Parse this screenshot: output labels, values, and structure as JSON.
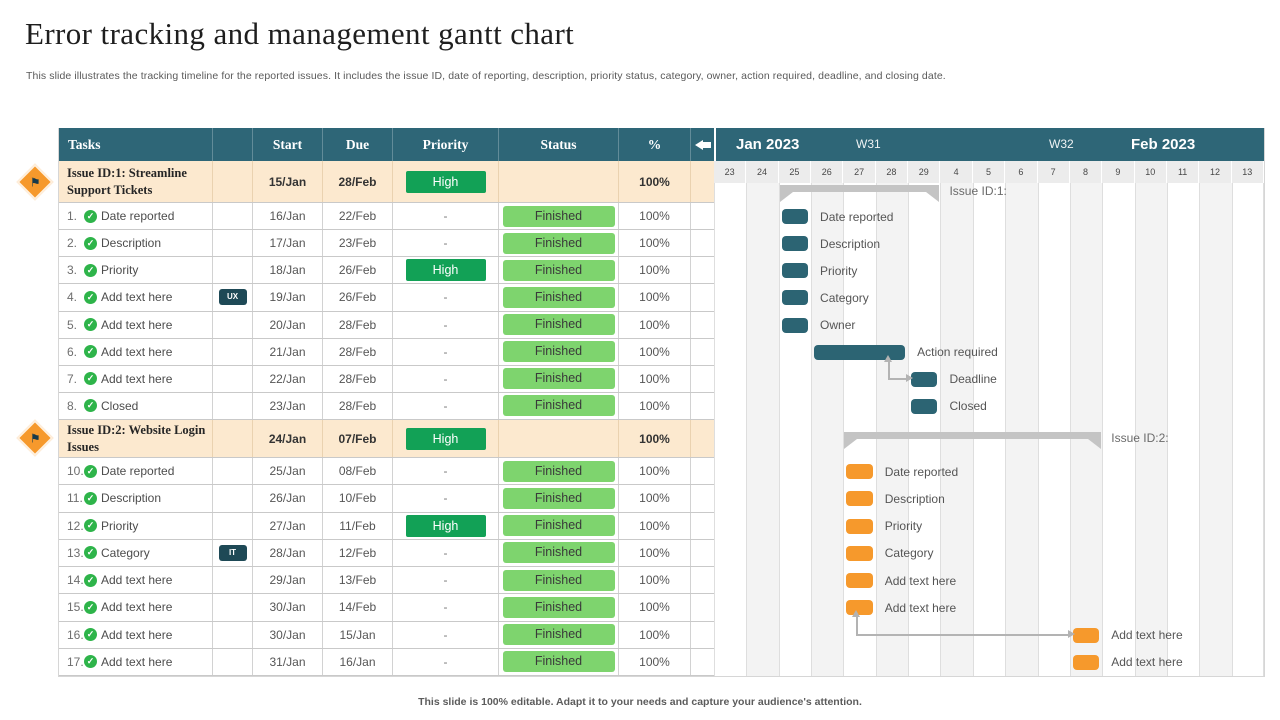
{
  "title": "Error tracking and management gantt chart",
  "subtitle": "This slide illustrates the tracking timeline for the reported issues. It includes the issue ID, date of reporting, description, priority status, category,  owner, action required, deadline, and closing date.",
  "footer": "This slide is 100% editable. Adapt it to your needs and capture your audience's attention.",
  "colors": {
    "header_teal": "#2e6677",
    "teal": "#2c6473",
    "orange": "#f6992c",
    "group_bg": "#fce9cf",
    "high_green": "#12a156",
    "finished_green": "#7ed46e",
    "summary_gray": "#c4c4c4",
    "arrow_gray": "#b3b3b3",
    "tag_bg": "#1e4956",
    "check_green": "#2eb44a"
  },
  "table": {
    "headers": [
      "Tasks",
      "",
      "Start",
      "Due",
      "Priority",
      "Status",
      "%"
    ],
    "back_arrow_icon": "back-arrow",
    "check_glyph": "✓",
    "flag_glyph": "⚑",
    "rows": [
      {
        "type": "group",
        "name": "Issue ID:1:  Streamline Support  Tickets",
        "tag": "",
        "start": "15/Jan",
        "due": "28/Feb",
        "priority": "High",
        "status": "",
        "percent": "100%"
      },
      {
        "type": "task",
        "num": "1.",
        "name": "Date reported",
        "tag": "",
        "start": "16/Jan",
        "due": "22/Feb",
        "priority": "-",
        "status": "Finished",
        "percent": "100%"
      },
      {
        "type": "task",
        "num": "2.",
        "name": "Description",
        "tag": "",
        "start": "17/Jan",
        "due": "23/Feb",
        "priority": "-",
        "status": "Finished",
        "percent": "100%"
      },
      {
        "type": "task",
        "num": "3.",
        "name": "Priority",
        "tag": "",
        "start": "18/Jan",
        "due": "26/Feb",
        "priority": "High",
        "status": "Finished",
        "percent": "100%"
      },
      {
        "type": "task",
        "num": "4.",
        "name": "Add text here",
        "tag": "UX",
        "start": "19/Jan",
        "due": "26/Feb",
        "priority": "-",
        "status": "Finished",
        "percent": "100%"
      },
      {
        "type": "task",
        "num": "5.",
        "name": "Add text here",
        "tag": "",
        "start": "20/Jan",
        "due": "28/Feb",
        "priority": "-",
        "status": "Finished",
        "percent": "100%"
      },
      {
        "type": "task",
        "num": "6.",
        "name": "Add text here",
        "tag": "",
        "start": "21/Jan",
        "due": "28/Feb",
        "priority": "-",
        "status": "Finished",
        "percent": "100%"
      },
      {
        "type": "task",
        "num": "7.",
        "name": "Add text here",
        "tag": "",
        "start": "22/Jan",
        "due": "28/Feb",
        "priority": "-",
        "status": "Finished",
        "percent": "100%"
      },
      {
        "type": "task",
        "num": "8.",
        "name": "Closed",
        "tag": "",
        "start": "23/Jan",
        "due": "28/Feb",
        "priority": "-",
        "status": "Finished",
        "percent": "100%"
      },
      {
        "type": "group",
        "name": "Issue ID:2:  Website Login Issues",
        "tag": "",
        "start": "24/Jan",
        "due": "07/Feb",
        "priority": "High",
        "status": "",
        "percent": "100%"
      },
      {
        "type": "task",
        "num": "10.",
        "name": "Date reported",
        "tag": "",
        "start": "25/Jan",
        "due": "08/Feb",
        "priority": "-",
        "status": "Finished",
        "percent": "100%"
      },
      {
        "type": "task",
        "num": "11.",
        "name": "Description",
        "tag": "",
        "start": "26/Jan",
        "due": "10/Feb",
        "priority": "-",
        "status": "Finished",
        "percent": "100%"
      },
      {
        "type": "task",
        "num": "12.",
        "name": "Priority",
        "tag": "",
        "start": "27/Jan",
        "due": "11/Feb",
        "priority": "High",
        "status": "Finished",
        "percent": "100%"
      },
      {
        "type": "task",
        "num": "13.",
        "name": "Category",
        "tag": "IT",
        "start": "28/Jan",
        "due": "12/Feb",
        "priority": "-",
        "status": "Finished",
        "percent": "100%"
      },
      {
        "type": "task",
        "num": "14.",
        "name": "Add text here",
        "tag": "",
        "start": "29/Jan",
        "due": "13/Feb",
        "priority": "-",
        "status": "Finished",
        "percent": "100%"
      },
      {
        "type": "task",
        "num": "15.",
        "name": "Add text here",
        "tag": "",
        "start": "30/Jan",
        "due": "14/Feb",
        "priority": "-",
        "status": "Finished",
        "percent": "100%"
      },
      {
        "type": "task",
        "num": "16.",
        "name": "Add text here",
        "tag": "",
        "start": "30/Jan",
        "due": "15/Jan",
        "priority": "-",
        "status": "Finished",
        "percent": "100%"
      },
      {
        "type": "task",
        "num": "17.",
        "name": "Add text here",
        "tag": "",
        "start": "31/Jan",
        "due": "16/Jan",
        "priority": "-",
        "status": "Finished",
        "percent": "100%"
      }
    ]
  },
  "chart_data": {
    "type": "bar",
    "subtype": "gantt",
    "title": "Error tracking and management gantt chart",
    "months": [
      "Jan 2023",
      "Feb 2023"
    ],
    "weeks": [
      "W31",
      "W32"
    ],
    "days": [
      "23",
      "24",
      "25",
      "26",
      "27",
      "28",
      "29",
      "4",
      "5",
      "6",
      "7",
      "8",
      "9",
      "10",
      "11",
      "12",
      "13"
    ],
    "summaries": [
      {
        "label": "Issue ID:1:",
        "from_day": "25",
        "to_day": "29"
      },
      {
        "label": "Issue ID:2:",
        "from_day": "27",
        "to_day": "8"
      }
    ],
    "bars": [
      {
        "row": 1,
        "day": "25",
        "span": 1,
        "color": "teal",
        "label": "Date reported"
      },
      {
        "row": 2,
        "day": "25",
        "span": 1,
        "color": "teal",
        "label": "Description"
      },
      {
        "row": 3,
        "day": "25",
        "span": 1,
        "color": "teal",
        "label": "Priority"
      },
      {
        "row": 4,
        "day": "25",
        "span": 1,
        "color": "teal",
        "label": "Category"
      },
      {
        "row": 5,
        "day": "25",
        "span": 1,
        "color": "teal",
        "label": "Owner"
      },
      {
        "row": 6,
        "day": "26",
        "span": 3,
        "color": "teal",
        "label": "Action required"
      },
      {
        "row": 7,
        "day": "29",
        "span": 1,
        "color": "teal",
        "label": "Deadline"
      },
      {
        "row": 8,
        "day": "29",
        "span": 1,
        "color": "teal",
        "label": "Closed"
      },
      {
        "row": 10,
        "day": "27",
        "span": 1,
        "color": "orange",
        "label": "Date reported"
      },
      {
        "row": 11,
        "day": "27",
        "span": 1,
        "color": "orange",
        "label": "Description"
      },
      {
        "row": 12,
        "day": "27",
        "span": 1,
        "color": "orange",
        "label": "Priority"
      },
      {
        "row": 13,
        "day": "27",
        "span": 1,
        "color": "orange",
        "label": "Category"
      },
      {
        "row": 14,
        "day": "27",
        "span": 1,
        "color": "orange",
        "label": "Add text here"
      },
      {
        "row": 15,
        "day": "27",
        "span": 1,
        "color": "orange",
        "label": "Add text here"
      },
      {
        "row": 16,
        "day": "8",
        "span": 1,
        "color": "orange",
        "label": "Add text here"
      },
      {
        "row": 17,
        "day": "8",
        "span": 1,
        "color": "orange",
        "label": "Add text here"
      }
    ],
    "connectors": [
      {
        "from_row": 6,
        "to_row": 7
      },
      {
        "from_row": 15,
        "to_row": 16
      }
    ]
  }
}
